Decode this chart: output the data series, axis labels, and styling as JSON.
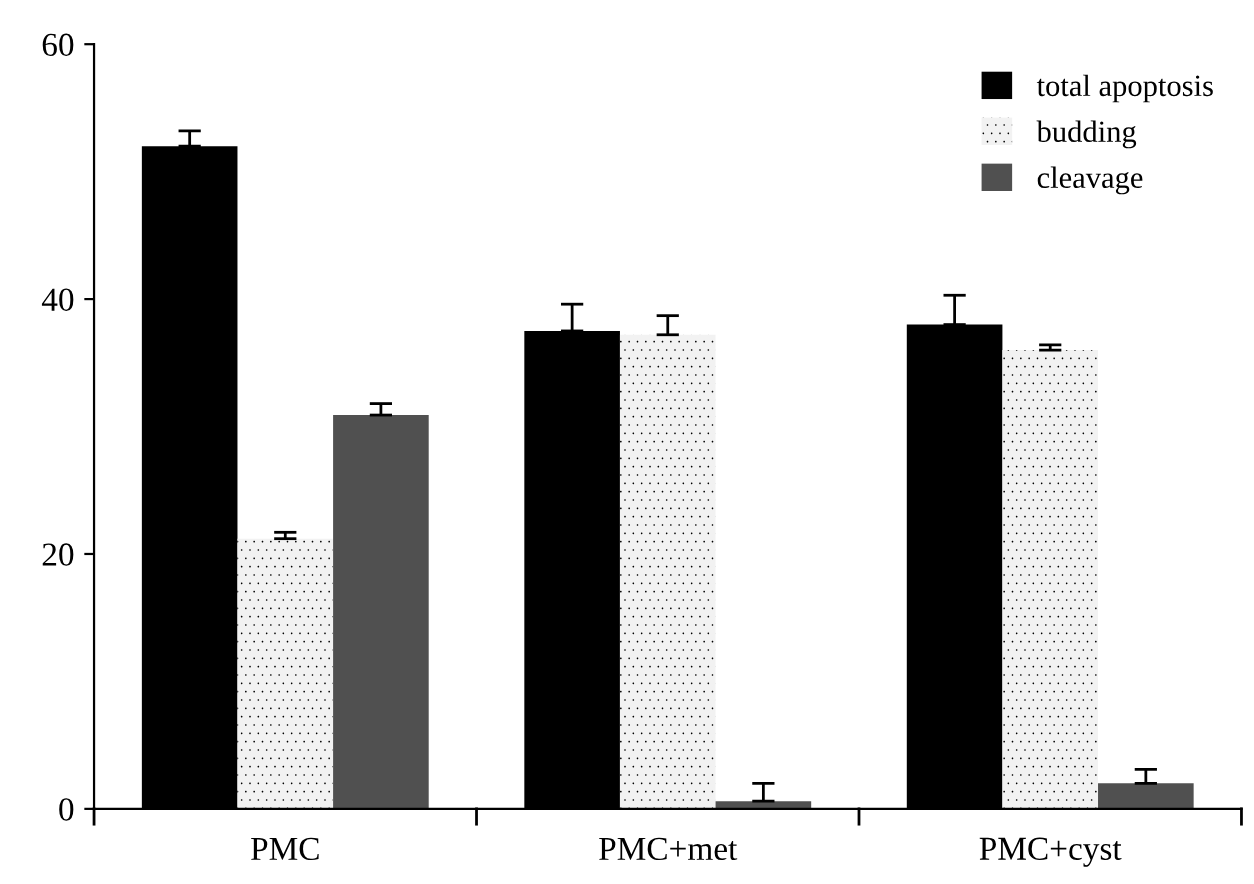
{
  "chart_data": {
    "type": "bar",
    "categories": [
      "PMC",
      "PMC+met",
      "PMC+cyst"
    ],
    "series": [
      {
        "name": "total apoptosis",
        "color": "#000000",
        "values": [
          52,
          37.5,
          38
        ],
        "errors": [
          [
            52,
            53.2
          ],
          [
            37.5,
            39.6
          ],
          [
            38,
            40.3
          ]
        ]
      },
      {
        "name": "budding",
        "color": "#f2f2f2",
        "values": [
          21.2,
          37.2,
          36
        ],
        "errors": [
          [
            21.2,
            21.7
          ],
          [
            37.2,
            38.7
          ],
          [
            36,
            36.4
          ]
        ]
      },
      {
        "name": "cleavage",
        "color": "#505050",
        "values": [
          30.9,
          0.6,
          2
        ],
        "errors": [
          [
            30.9,
            31.8
          ],
          [
            0.6,
            2
          ],
          [
            2,
            3.1
          ]
        ]
      }
    ],
    "ylim": [
      0,
      60
    ],
    "yticks": [
      0,
      20,
      40,
      60
    ],
    "grid": false,
    "legend": "top right"
  }
}
